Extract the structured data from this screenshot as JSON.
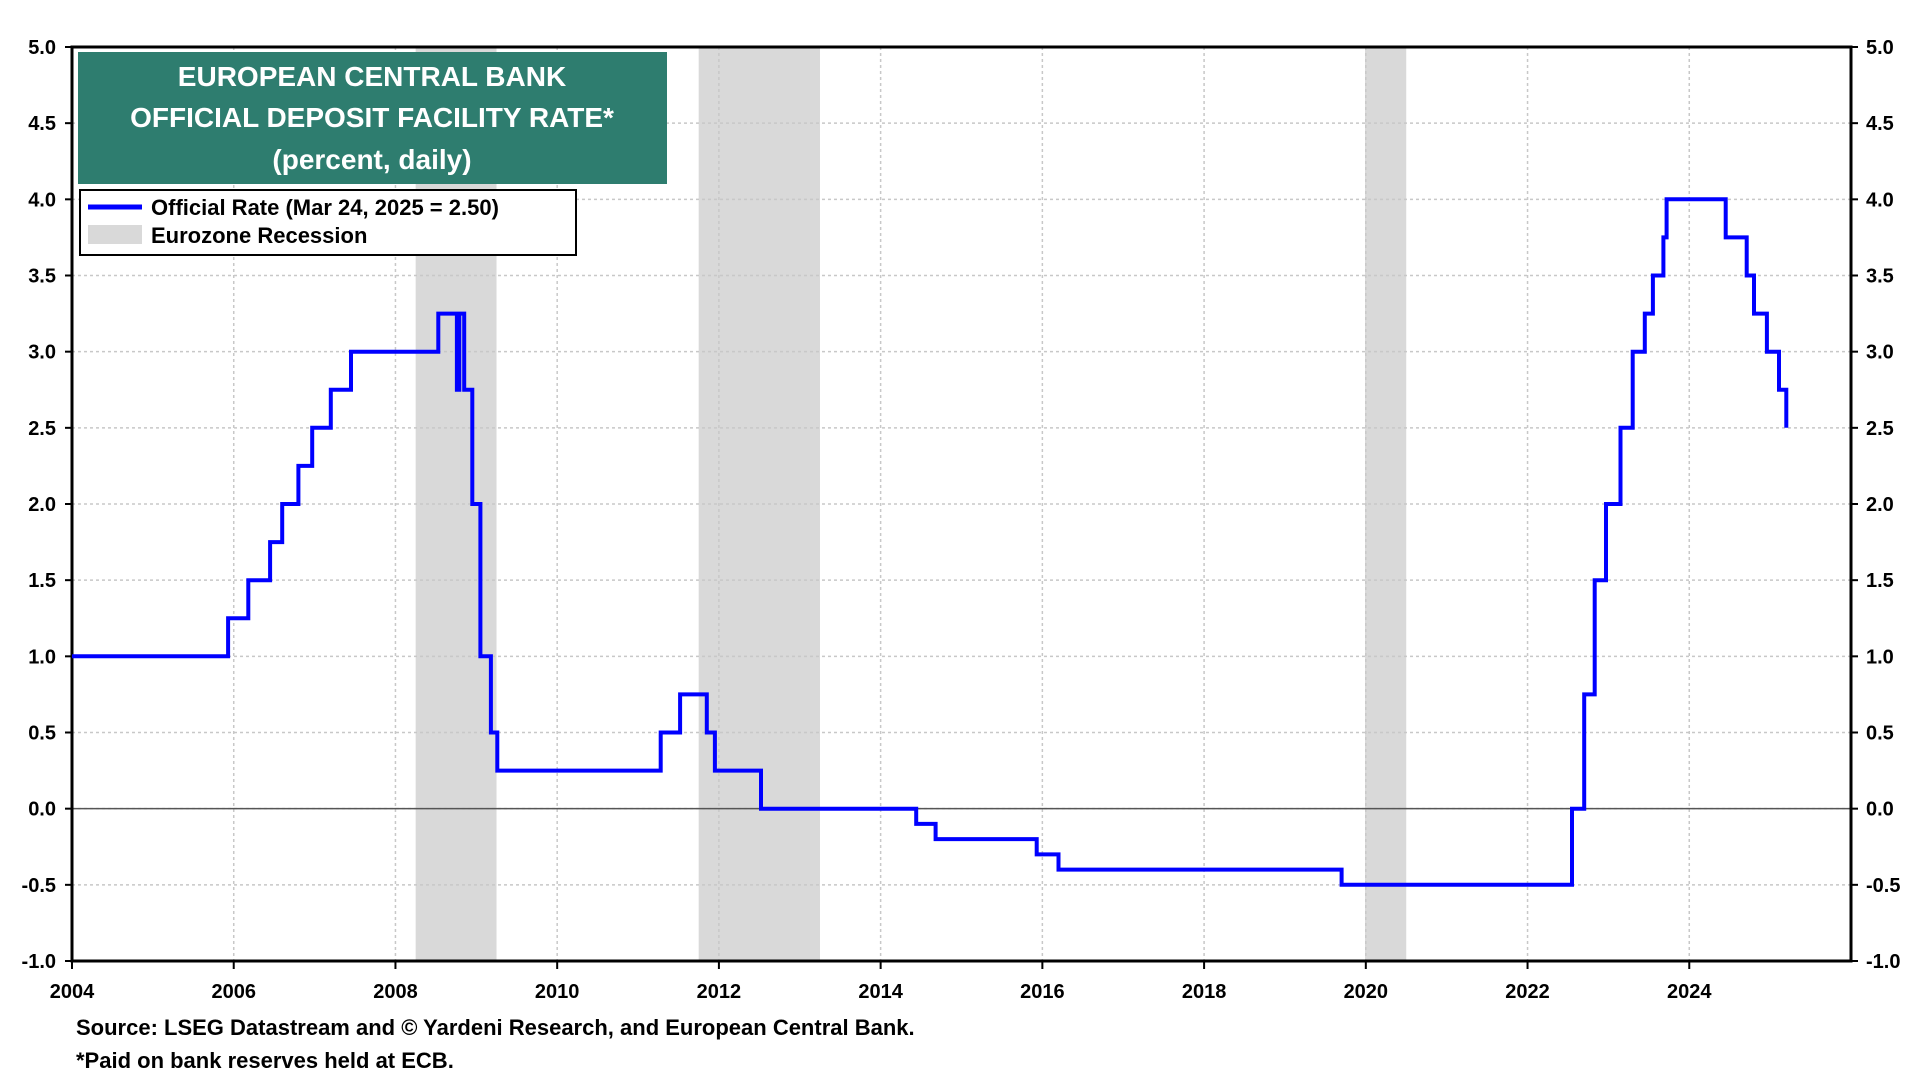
{
  "chart_data": {
    "type": "line",
    "title_lines": [
      "EUROPEAN CENTRAL BANK",
      "OFFICIAL DEPOSIT FACILITY RATE*",
      "(percent, daily)"
    ],
    "colors": {
      "title_bg": "#2e7d6f",
      "series": "#0000ff",
      "recession": "#d9d9d9"
    },
    "xlim": [
      2004,
      2026
    ],
    "ylim": [
      -1.0,
      5.0
    ],
    "x_ticks": [
      "2004",
      "2006",
      "2008",
      "2010",
      "2012",
      "2014",
      "2016",
      "2018",
      "2020",
      "2022",
      "2024"
    ],
    "y_ticks": [
      "5.0",
      "4.5",
      "4.0",
      "3.5",
      "3.0",
      "2.5",
      "2.0",
      "1.5",
      "1.0",
      "0.5",
      "0.0",
      "-0.5",
      "-1.0"
    ],
    "grid": true,
    "legend_position": "top-left",
    "legend": [
      {
        "label": "Official Rate  (Mar 24, 2025 = 2.50)",
        "kind": "line"
      },
      {
        "label": "Eurozone Recession",
        "kind": "band"
      }
    ],
    "recessions": [
      [
        2008.25,
        2009.25
      ],
      [
        2011.75,
        2013.25
      ],
      [
        2019.99,
        2020.5
      ]
    ],
    "series": [
      {
        "name": "Official Rate",
        "points": [
          [
            2004.0,
            1.0
          ],
          [
            2005.93,
            1.25
          ],
          [
            2006.18,
            1.5
          ],
          [
            2006.45,
            1.75
          ],
          [
            2006.6,
            2.0
          ],
          [
            2006.8,
            2.25
          ],
          [
            2006.97,
            2.5
          ],
          [
            2007.2,
            2.75
          ],
          [
            2007.45,
            3.0
          ],
          [
            2008.53,
            3.25
          ],
          [
            2008.76,
            2.75
          ],
          [
            2008.79,
            3.25
          ],
          [
            2008.85,
            2.75
          ],
          [
            2008.95,
            2.0
          ],
          [
            2009.05,
            1.0
          ],
          [
            2009.18,
            0.5
          ],
          [
            2009.26,
            0.25
          ],
          [
            2011.28,
            0.5
          ],
          [
            2011.52,
            0.75
          ],
          [
            2011.85,
            0.5
          ],
          [
            2011.95,
            0.25
          ],
          [
            2012.52,
            0.0
          ],
          [
            2014.44,
            -0.1
          ],
          [
            2014.68,
            -0.2
          ],
          [
            2015.93,
            -0.3
          ],
          [
            2016.2,
            -0.4
          ],
          [
            2019.7,
            -0.5
          ],
          [
            2022.55,
            0.0
          ],
          [
            2022.7,
            0.75
          ],
          [
            2022.83,
            1.5
          ],
          [
            2022.97,
            2.0
          ],
          [
            2023.15,
            2.5
          ],
          [
            2023.3,
            3.0
          ],
          [
            2023.45,
            3.25
          ],
          [
            2023.55,
            3.5
          ],
          [
            2023.68,
            3.75
          ],
          [
            2023.72,
            4.0
          ],
          [
            2024.45,
            3.75
          ],
          [
            2024.71,
            3.5
          ],
          [
            2024.8,
            3.25
          ],
          [
            2024.96,
            3.0
          ],
          [
            2025.11,
            2.75
          ],
          [
            2025.2,
            2.5
          ]
        ]
      }
    ],
    "source_lines": [
      "Source: LSEG Datastream and © Yardeni Research, and European Central Bank.",
      "*Paid on bank reserves held at ECB."
    ]
  }
}
